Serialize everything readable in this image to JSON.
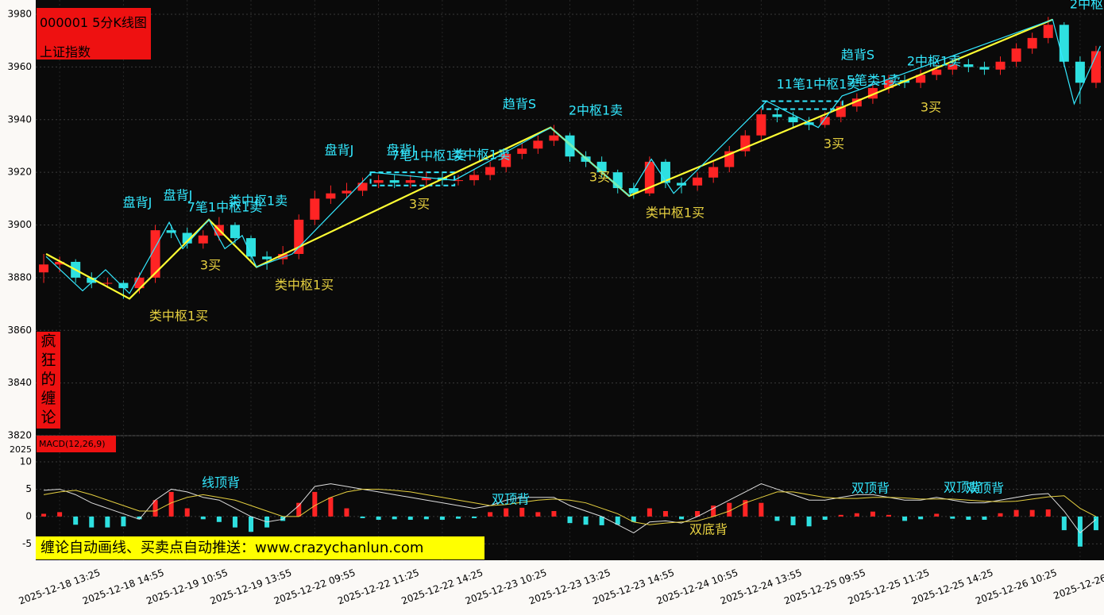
{
  "chart_data": [
    {
      "type": "candlestick",
      "title": "000001 5分K线图",
      "subtitle": "上证指数",
      "side_label": "疯狂的缠论",
      "banner": "缠论自动画线、买卖点自动推送：www.crazychanlun.com",
      "corner_label": "2025",
      "categories": [
        null,
        "2025-12-18 13:25",
        null,
        null,
        null,
        "2025-12-18 14:55",
        null,
        null,
        null,
        "2025-12-19 10:55",
        null,
        null,
        null,
        "2025-12-19 13:55",
        null,
        null,
        null,
        "2025-12-22 09:55",
        null,
        null,
        null,
        "2025-12-22 11:25",
        null,
        null,
        null,
        "2025-12-22 14:25",
        null,
        null,
        null,
        "2025-12-23 10:25",
        null,
        null,
        null,
        "2025-12-23 13:25",
        null,
        null,
        null,
        "2025-12-23 14:55",
        null,
        null,
        null,
        "2025-12-24 10:55",
        null,
        null,
        null,
        "2025-12-24 13:55",
        null,
        null,
        null,
        "2025-12-25 09:55",
        null,
        null,
        null,
        "2025-12-25 11:25",
        null,
        null,
        null,
        "2025-12-25 14:25",
        null,
        null,
        null,
        "2025-12-26 10:25",
        null,
        null,
        null,
        "2025-12-26",
        null
      ],
      "open": [
        3882,
        3885,
        3886,
        3880,
        3878,
        3878,
        3876,
        3880,
        3898,
        3897,
        3893,
        3896,
        3900,
        3895,
        3888,
        3887,
        3889,
        3902,
        3910,
        3912,
        3913,
        3916,
        3917,
        3916,
        3917,
        3918,
        3917,
        3917,
        3919,
        3922,
        3927,
        3929,
        3932,
        3934,
        3926,
        3924,
        3920,
        3914,
        3912,
        3924,
        3916,
        3915,
        3918,
        3922,
        3928,
        3934,
        3942,
        3941,
        3939,
        3938,
        3941,
        3945,
        3948,
        3952,
        3955,
        3954,
        3957,
        3959,
        3961,
        3960,
        3959,
        3962,
        3967,
        3971,
        3976,
        3962,
        3954
      ],
      "high": [
        3889,
        3888,
        3887,
        3882,
        3880,
        3879,
        3882,
        3900,
        3900,
        3899,
        3898,
        3903,
        3901,
        3896,
        3890,
        3892,
        3904,
        3913,
        3915,
        3916,
        3918,
        3919,
        3919,
        3919,
        3920,
        3920,
        3919,
        3921,
        3924,
        3929,
        3931,
        3934,
        3938,
        3935,
        3928,
        3926,
        3921,
        3916,
        3926,
        3925,
        3918,
        3920,
        3924,
        3930,
        3936,
        3944,
        3944,
        3943,
        3941,
        3943,
        3947,
        3950,
        3954,
        3957,
        3957,
        3959,
        3961,
        3963,
        3963,
        3962,
        3964,
        3969,
        3973,
        3979,
        3977,
        3964,
        3968
      ],
      "low": [
        3878,
        3882,
        3878,
        3876,
        3876,
        3872,
        3874,
        3878,
        3895,
        3891,
        3891,
        3894,
        3893,
        3886,
        3883,
        3885,
        3887,
        3900,
        3908,
        3910,
        3911,
        3914,
        3914,
        3914,
        3915,
        3915,
        3915,
        3915,
        3917,
        3920,
        3925,
        3927,
        3930,
        3924,
        3922,
        3918,
        3912,
        3910,
        3911,
        3914,
        3912,
        3913,
        3916,
        3920,
        3926,
        3932,
        3939,
        3937,
        3936,
        3937,
        3939,
        3943,
        3946,
        3950,
        3952,
        3952,
        3955,
        3957,
        3958,
        3957,
        3957,
        3960,
        3965,
        3969,
        3960,
        3946,
        3952
      ],
      "close": [
        3885,
        3886,
        3880,
        3878,
        3878,
        3876,
        3880,
        3898,
        3897,
        3893,
        3896,
        3900,
        3895,
        3888,
        3887,
        3889,
        3902,
        3910,
        3912,
        3913,
        3916,
        3917,
        3916,
        3917,
        3918,
        3917,
        3917,
        3919,
        3922,
        3927,
        3929,
        3932,
        3934,
        3926,
        3924,
        3920,
        3914,
        3912,
        3924,
        3916,
        3915,
        3918,
        3922,
        3928,
        3934,
        3942,
        3941,
        3939,
        3938,
        3941,
        3945,
        3948,
        3952,
        3955,
        3954,
        3957,
        3959,
        3961,
        3960,
        3959,
        3962,
        3967,
        3971,
        3976,
        3962,
        3954,
        3966
      ],
      "up_color": "#ff2424",
      "down_color": "#2ee0e0",
      "xlim": [
        0,
        67
      ],
      "ylim": [
        3820,
        3980
      ],
      "yticks": [
        3820,
        3840,
        3860,
        3880,
        3900,
        3920,
        3940,
        3960,
        3980
      ],
      "grid": true,
      "lines": [
        {
          "color": "#ffff33",
          "x": [
            0.65,
            5.88,
            10.86,
            13.85,
            32.29,
            37.22,
            63.78
          ],
          "values": [
            3889,
            3872,
            3902,
            3884,
            3937,
            3911,
            3978
          ]
        },
        {
          "color": "#33e8ff",
          "x": [
            0.65,
            2.94,
            4.38,
            5.88,
            8.37,
            9.22,
            10.86,
            11.86,
            12.95,
            13.85,
            16.09,
            21.07,
            26.26,
            32.29,
            37.22,
            38.61,
            40.01,
            45.84,
            49.08,
            50.57,
            63.78,
            65.13,
            66.77
          ],
          "values": [
            3888,
            3875,
            3883,
            3874,
            3901,
            3891,
            3902,
            3891,
            3896,
            3884,
            3889,
            3920,
            3917,
            3937,
            3911,
            3925,
            3912,
            3947,
            3937,
            3949,
            3978,
            3946,
            3968
          ]
        }
      ],
      "zhongshu": [
        {
          "x": [
            21.0,
            26.26
          ],
          "range": [
            3915,
            3920
          ]
        },
        {
          "x": [
            45.6,
            50.6
          ],
          "range": [
            3944,
            3947
          ]
        }
      ],
      "annotations": [
        {
          "text": "盘背J",
          "color": "#33e8ff"
        },
        {
          "text": "盘背J",
          "color": "#33e8ff"
        },
        {
          "text": "7笔1中枢1卖",
          "color": "#33e8ff"
        },
        {
          "text": "类中枢1卖",
          "color": "#33e8ff"
        },
        {
          "text": "3买",
          "color": "#e6d040"
        },
        {
          "text": "类中枢1买",
          "color": "#e6d040"
        },
        {
          "text": "类中枢1买",
          "color": "#e6d040"
        },
        {
          "text": "盘背J",
          "color": "#33e8ff"
        },
        {
          "text": "盘背J",
          "color": "#33e8ff"
        },
        {
          "text": "7笔1中枢1卖",
          "color": "#33e8ff"
        },
        {
          "text": "类中枢1卖",
          "color": "#33e8ff"
        },
        {
          "text": "3买",
          "color": "#e6d040"
        },
        {
          "text": "趋背S",
          "color": "#33e8ff"
        },
        {
          "text": "2中枢1卖",
          "color": "#33e8ff"
        },
        {
          "text": "3买",
          "color": "#e6d040"
        },
        {
          "text": "类中枢1买",
          "color": "#e6d040"
        },
        {
          "text": "11笔1中枢1卖",
          "color": "#33e8ff"
        },
        {
          "text": "5笔类1卖",
          "color": "#33e8ff"
        },
        {
          "text": "趋背S",
          "color": "#33e8ff"
        },
        {
          "text": "2中枢1卖",
          "color": "#33e8ff"
        },
        {
          "text": "3买",
          "color": "#e6d040"
        },
        {
          "text": "3买",
          "color": "#e6d040"
        },
        {
          "text": "2中枢",
          "color": "#33e8ff"
        }
      ]
    },
    {
      "type": "macd",
      "title": "MACD(12,26,9)",
      "xlim": [
        0,
        67
      ],
      "ylim": [
        -8,
        11.6
      ],
      "yticks": [
        -5,
        0,
        5,
        10
      ],
      "series": [
        {
          "colors": [
            "#ff2424",
            "#2ee0e0"
          ],
          "values": [
            0.5,
            0.8,
            -1.5,
            -2,
            -2,
            -1.8,
            -0.5,
            3,
            4.5,
            1.5,
            -0.5,
            -1,
            -2,
            -2.8,
            -2,
            -0.8,
            2.5,
            4.5,
            3.5,
            1.5,
            -0.3,
            -0.6,
            -0.5,
            -0.6,
            -0.5,
            -0.6,
            -0.4,
            -0.3,
            0.8,
            1.5,
            1.6,
            0.8,
            1.0,
            -1.2,
            -1.5,
            -1.6,
            -1.5,
            -1.0,
            1.5,
            1.0,
            -0.5,
            1.0,
            2.0,
            2.5,
            3.0,
            2.5,
            -0.8,
            -1.6,
            -1.8,
            -0.6,
            0.3,
            0.6,
            0.9,
            0.3,
            -0.8,
            -0.5,
            0.5,
            -0.4,
            -0.6,
            -0.6,
            0.6,
            1.2,
            1.2,
            1.3,
            -2.5,
            -5.5,
            -2.5
          ]
        },
        {
          "color": "#dddddd",
          "values": [
            4.8,
            5.0,
            4,
            2.5,
            1.5,
            0.5,
            -0.5,
            3,
            5,
            4.5,
            3.5,
            3,
            1.5,
            0,
            -1,
            -0.5,
            2,
            5.5,
            6,
            5.5,
            5,
            4.5,
            4,
            3.5,
            3,
            2.5,
            2,
            1.5,
            2,
            3,
            3.5,
            3.5,
            3.5,
            2,
            1,
            0,
            -1.5,
            -3,
            -1,
            -0.8,
            -1.2,
            0,
            1.5,
            3,
            4.5,
            6,
            5,
            4,
            3,
            3,
            3.5,
            4,
            4,
            3.5,
            3,
            3,
            3.5,
            3,
            2.5,
            2.5,
            3,
            3.5,
            4,
            4.2,
            1,
            -3,
            -0.5
          ]
        },
        {
          "color": "#e6d040",
          "values": [
            4,
            4.5,
            4.8,
            4,
            3,
            2,
            1,
            1,
            2.5,
            3.5,
            4,
            3.5,
            3,
            2,
            1,
            0,
            0,
            2,
            3.5,
            4.5,
            5,
            5,
            4.8,
            4.5,
            4,
            3.5,
            3,
            2.5,
            2,
            2.2,
            2.6,
            3,
            3.2,
            3,
            2.5,
            1.5,
            0.5,
            -1,
            -1.5,
            -1.2,
            -1,
            -0.8,
            0,
            1,
            2.5,
            3.5,
            4.5,
            4.5,
            4,
            3.5,
            3.3,
            3.3,
            3.5,
            3.5,
            3.4,
            3.2,
            3.2,
            3.2,
            3,
            2.8,
            2.7,
            2.8,
            3.2,
            3.6,
            3.8,
            1.5,
            0
          ]
        }
      ],
      "annotations": [
        {
          "text": "线顶背",
          "color": "#33e8ff"
        },
        {
          "text": "双顶背",
          "color": "#33e8ff"
        },
        {
          "text": "双底背",
          "color": "#e6d040"
        },
        {
          "text": "双顶背",
          "color": "#33e8ff"
        },
        {
          "text": "双顶背",
          "color": "#33e8ff"
        },
        {
          "text": "双顶背",
          "color": "#33e8ff"
        }
      ]
    }
  ]
}
